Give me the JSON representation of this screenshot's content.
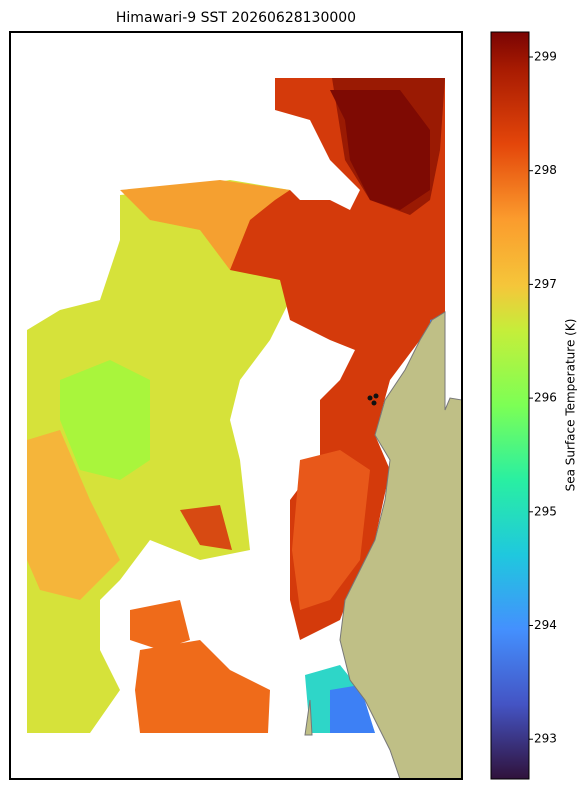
{
  "chart_data": {
    "type": "map",
    "title": "Himawari-9 SST 20260628130000",
    "colorbar": {
      "label": "Sea Surface Temperature (K)",
      "lim": [
        292.65,
        299.22
      ],
      "ticks": [
        293,
        294,
        295,
        296,
        297,
        298,
        299
      ]
    }
  }
}
